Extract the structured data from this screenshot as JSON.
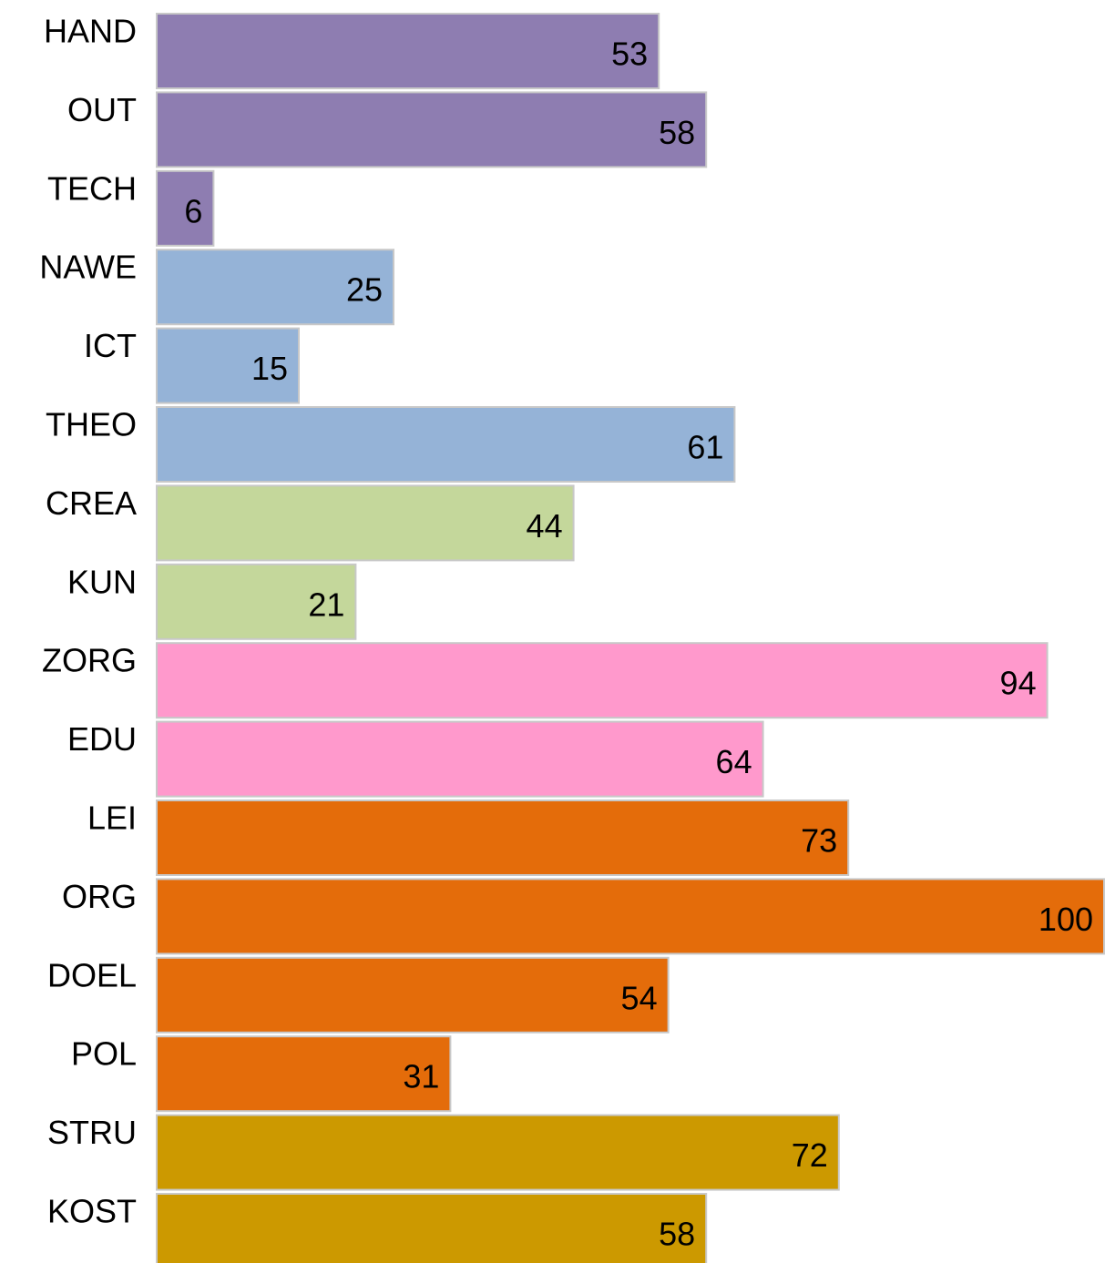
{
  "chart_data": {
    "type": "hbar",
    "categories": [
      "HAND",
      "OUT",
      "TECH",
      "NAWE",
      "ICT",
      "THEO",
      "CREA",
      "KUN",
      "ZORG",
      "EDU",
      "LEI",
      "ORG",
      "DOEL",
      "POL",
      "STRU",
      "KOST"
    ],
    "values": [
      53,
      58,
      6,
      25,
      15,
      61,
      44,
      21,
      94,
      64,
      73,
      100,
      54,
      31,
      72,
      58
    ],
    "colors": [
      "#8e7db1",
      "#8e7db1",
      "#8e7db1",
      "#95b3d7",
      "#95b3d7",
      "#95b3d7",
      "#c4d79b",
      "#c4d79b",
      "#ff99cc",
      "#ff99cc",
      "#e46c0a",
      "#e46c0a",
      "#e46c0a",
      "#e46c0a",
      "#cc9900",
      "#cc9900"
    ],
    "xlim": [
      0,
      100
    ]
  }
}
